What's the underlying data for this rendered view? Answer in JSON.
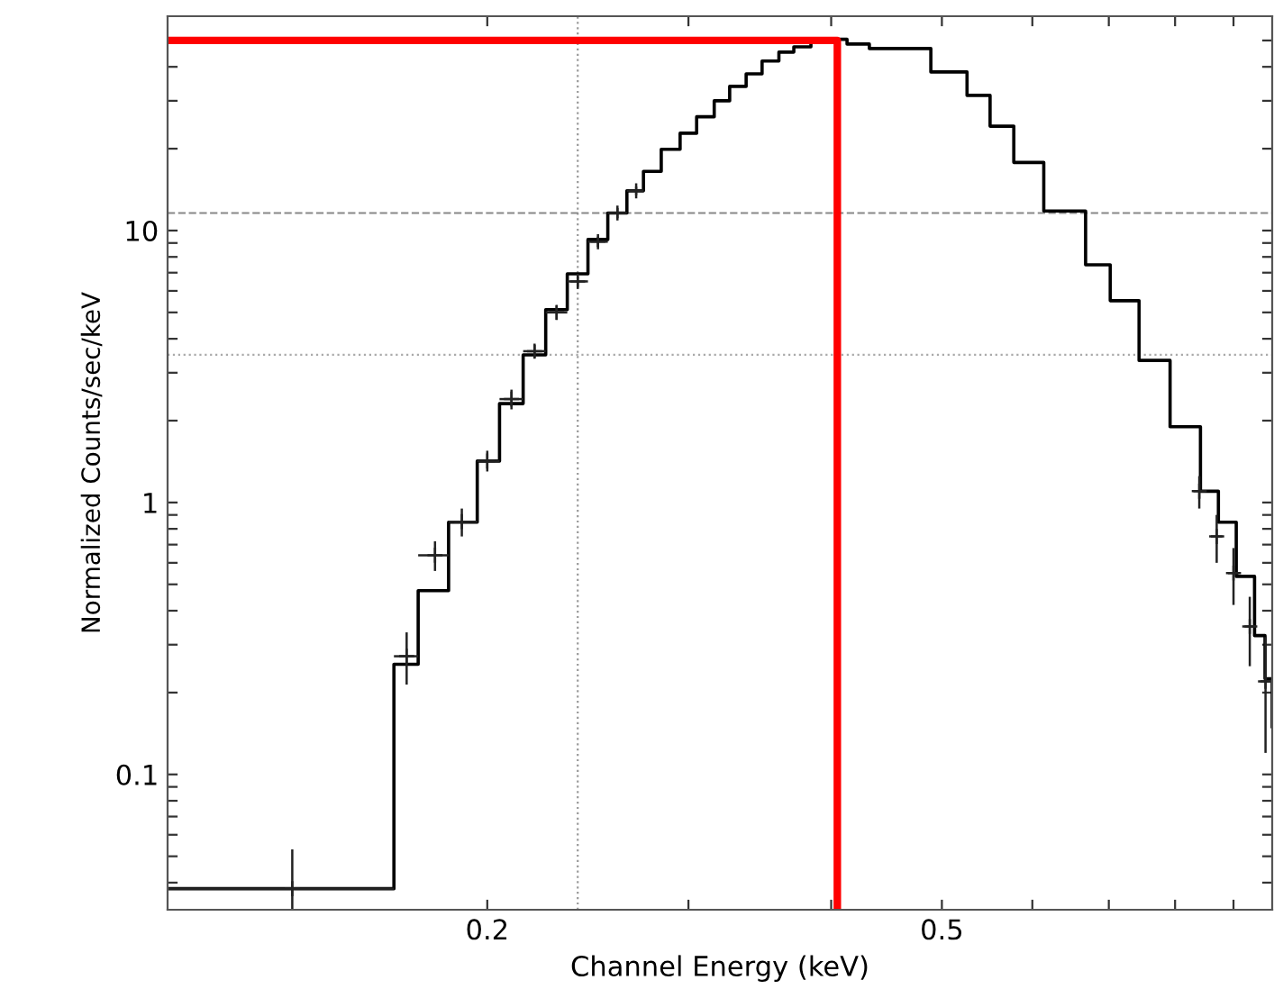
{
  "chart_data": {
    "type": "step",
    "xlabel": "Channel Energy (keV)",
    "ylabel": "Normalized Counts/sec/keV",
    "log": "xy",
    "grid": false,
    "xlim": [
      0.105,
      0.973
    ],
    "ylim": [
      0.0318,
      61.4
    ],
    "xticks": [
      0.2,
      0.5,
      {
        "value": 0.3,
        "label": null
      },
      {
        "value": 0.4,
        "label": null
      },
      {
        "value": 0.6,
        "label": null
      },
      {
        "value": 0.7,
        "label": null
      },
      {
        "value": 0.8,
        "label": null
      },
      {
        "value": 0.9,
        "label": null
      }
    ],
    "yticks": [
      {
        "value": 0.1,
        "label": "0.1"
      },
      1,
      10,
      {
        "value": 0.04,
        "label": null
      },
      {
        "value": 0.05,
        "label": null
      },
      {
        "value": 0.06,
        "label": null
      },
      {
        "value": 0.07,
        "label": null
      },
      {
        "value": 0.08,
        "label": null
      },
      {
        "value": 0.09,
        "label": null
      },
      {
        "value": 0.2,
        "label": null
      },
      {
        "value": 0.3,
        "label": null
      },
      {
        "value": 0.4,
        "label": null
      },
      {
        "value": 0.5,
        "label": null
      },
      {
        "value": 0.6,
        "label": null
      },
      {
        "value": 0.7,
        "label": null
      },
      {
        "value": 0.8,
        "label": null
      },
      {
        "value": 0.9,
        "label": null
      },
      {
        "value": 2,
        "label": null
      },
      {
        "value": 3,
        "label": null
      },
      {
        "value": 4,
        "label": null
      },
      {
        "value": 5,
        "label": null
      },
      {
        "value": 6,
        "label": null
      },
      {
        "value": 7,
        "label": null
      },
      {
        "value": 8,
        "label": null
      },
      {
        "value": 9,
        "label": null
      },
      {
        "value": 20,
        "label": null
      },
      {
        "value": 30,
        "label": null
      },
      {
        "value": 40,
        "label": null
      },
      {
        "value": 50,
        "label": null
      }
    ],
    "ref_lines": [
      {
        "axis": "x",
        "value": 0.24,
        "color": "#999999",
        "line_style": "dotted"
      },
      {
        "axis": "y",
        "value": 11.6,
        "color": "#888888",
        "line_style": "dashed"
      },
      {
        "axis": "y",
        "value": 3.49,
        "color": "#aaaaaa",
        "line_style": "dotted"
      }
    ],
    "series": [
      {
        "color": "#000000",
        "line_style": "solid",
        "x": [
          0.105,
          0.1657,
          0.174,
          0.185,
          0.196,
          0.205,
          0.215,
          0.225,
          0.235,
          0.245,
          0.255,
          0.265,
          0.274,
          0.284,
          0.295,
          0.305,
          0.316,
          0.326,
          0.337,
          0.348,
          0.36,
          0.371,
          0.384,
          0.398,
          0.413,
          0.432,
          0.489,
          0.526,
          0.551,
          0.578,
          0.614,
          0.668,
          0.702,
          0.744,
          0.792,
          0.842,
          0.873,
          0.905,
          0.939,
          0.959,
          0.973
        ],
        "values": [
          0.038,
          0.254,
          0.474,
          0.846,
          1.42,
          2.31,
          3.49,
          5.12,
          6.93,
          9.27,
          11.6,
          14.0,
          16.5,
          19.9,
          22.8,
          26.2,
          30.0,
          33.9,
          37.7,
          42.0,
          45.3,
          47.4,
          49.5,
          50.5,
          48.5,
          46.7,
          38.3,
          31.4,
          24.2,
          17.8,
          11.8,
          7.48,
          5.52,
          3.33,
          1.9,
          1.1,
          0.846,
          0.535,
          0.324,
          0.225,
          0.15
        ]
      },
      {
        "type": "scatter",
        "marker": "cross",
        "color": "#222222",
        "x": [
          0.135,
          0.17,
          0.18,
          0.19,
          0.2,
          0.21,
          0.22,
          0.23,
          0.24,
          0.25,
          0.26,
          0.27,
          0.84,
          0.87,
          0.9,
          0.93,
          0.96
        ],
        "values": [
          0.038,
          0.272,
          0.64,
          0.85,
          1.42,
          2.4,
          3.6,
          5.0,
          6.5,
          9.1,
          11.6,
          14.0,
          1.1,
          0.75,
          0.55,
          0.35,
          0.22
        ],
        "errors": [
          [
            0.032,
            0.053
          ],
          [
            0.214,
            0.333
          ],
          [
            0.56,
            0.72
          ],
          [
            0.75,
            0.95
          ],
          [
            1.3,
            1.55
          ],
          [
            2.2,
            2.6
          ],
          [
            3.4,
            3.8
          ],
          [
            4.7,
            5.3
          ],
          [
            6.2,
            6.8
          ],
          [
            8.7,
            9.5
          ],
          [
            11.1,
            12.1
          ],
          [
            13.5,
            14.5
          ],
          [
            0.95,
            1.25
          ],
          [
            0.6,
            0.9
          ],
          [
            0.42,
            0.68
          ],
          [
            0.25,
            0.45
          ],
          [
            0.12,
            0.32
          ]
        ],
        "xerrors": [
          [
            0.105,
            0.1657
          ],
          [
            0.1657,
            0.174
          ],
          [
            0.174,
            0.185
          ],
          [
            0.185,
            0.196
          ],
          [
            0.196,
            0.205
          ],
          [
            0.205,
            0.215
          ],
          [
            0.215,
            0.225
          ],
          [
            0.225,
            0.235
          ],
          [
            0.235,
            0.245
          ],
          [
            0.245,
            0.255
          ],
          [
            0.255,
            0.265
          ],
          [
            0.265,
            0.274
          ],
          [
            0.83,
            0.85
          ],
          [
            0.86,
            0.88
          ],
          [
            0.89,
            0.91
          ],
          [
            0.92,
            0.94
          ],
          [
            0.95,
            0.97
          ]
        ]
      },
      {
        "type": "line",
        "color": "#ff0000",
        "line_style": "solid",
        "x": [
          0.105,
          0.405,
          0.405
        ],
        "values": [
          50,
          50,
          0.0318
        ]
      }
    ]
  }
}
